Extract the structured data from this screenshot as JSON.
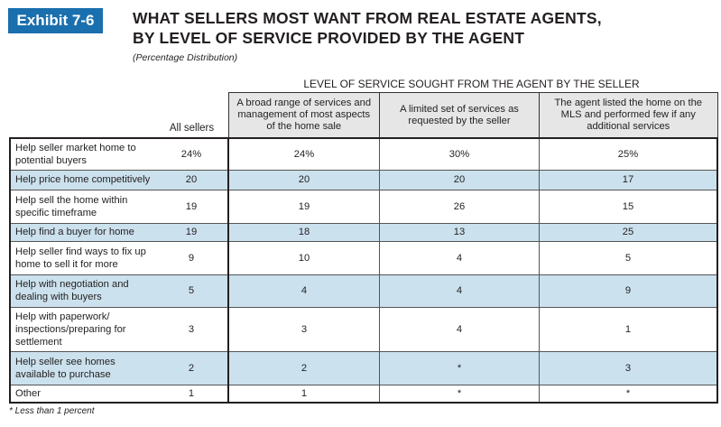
{
  "exhibit": "Exhibit 7-6",
  "title_line1": "WHAT SELLERS MOST WANT FROM REAL ESTATE AGENTS,",
  "title_line2": "BY LEVEL OF SERVICE PROVIDED BY THE AGENT",
  "subtitle": "(Percentage Distribution)",
  "level_header": "LEVEL OF SERVICE SOUGHT FROM THE AGENT BY THE SELLER",
  "columns": [
    "All sellers",
    "A broad range of services and management of most aspects of the home sale",
    "A limited set of services as requested by the seller",
    "The agent listed the home on the MLS and performed few if any additional services"
  ],
  "rows": [
    {
      "label": "Help seller market home to potential buyers",
      "values": [
        "24%",
        "24%",
        "30%",
        "25%"
      ]
    },
    {
      "label": "Help price home competitively",
      "values": [
        "20",
        "20",
        "20",
        "17"
      ]
    },
    {
      "label": "Help sell the home within specific timeframe",
      "values": [
        "19",
        "19",
        "26",
        "15"
      ]
    },
    {
      "label": "Help find a buyer for home",
      "values": [
        "19",
        "18",
        "13",
        "25"
      ]
    },
    {
      "label": "Help seller find ways to fix up home to sell it for more",
      "values": [
        "9",
        "10",
        "4",
        "5"
      ]
    },
    {
      "label": "Help with negotiation and dealing with buyers",
      "values": [
        "5",
        "4",
        "4",
        "9"
      ]
    },
    {
      "label": "Help with paperwork/ inspections/preparing for settlement",
      "values": [
        "3",
        "3",
        "4",
        "1"
      ]
    },
    {
      "label": "Help seller see homes available to purchase",
      "values": [
        "2",
        "2",
        "*",
        "3"
      ]
    },
    {
      "label": "Other",
      "values": [
        "1",
        "1",
        "*",
        "*"
      ]
    }
  ],
  "footnote": "* Less than 1 percent",
  "colors": {
    "badge": "#1a6fae",
    "shade": "#cbe1ed",
    "header": "#e6e6e7"
  }
}
